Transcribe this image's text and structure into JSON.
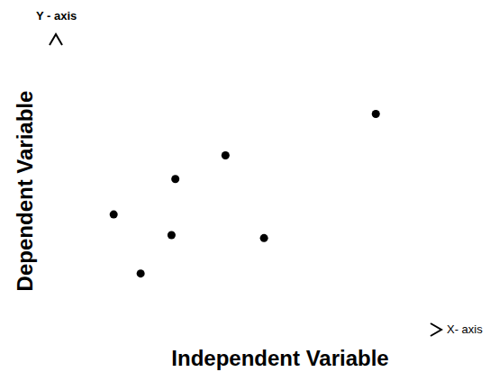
{
  "chart_data": {
    "type": "scatter",
    "x_label": "Independent Variable",
    "y_label": "Dependent Variable",
    "x_axis_name": "X- axis",
    "y_axis_name": "Y - axis",
    "x": [
      1.5,
      2.2,
      3.0,
      3.1,
      4.4,
      5.4,
      8.3
    ],
    "values": [
      3.9,
      1.9,
      3.2,
      5.1,
      5.9,
      3.1,
      7.3
    ],
    "xlim": [
      0,
      10
    ],
    "ylim": [
      0,
      10
    ],
    "tick_labels": false,
    "grid": false,
    "color": "#000000",
    "marker": "circle"
  }
}
